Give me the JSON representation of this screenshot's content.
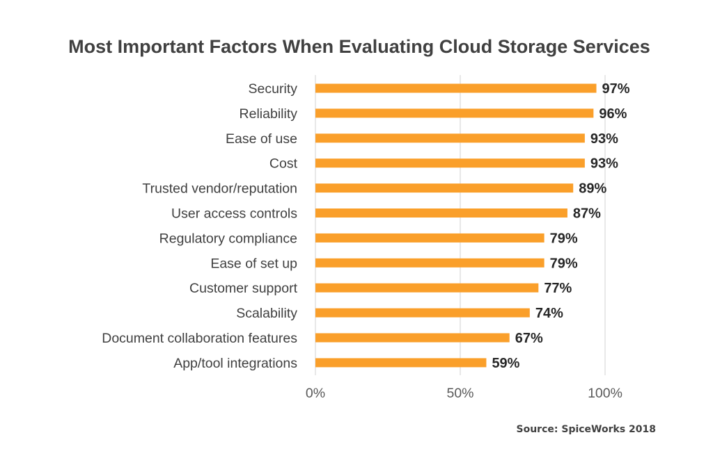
{
  "chart_data": {
    "type": "bar",
    "orientation": "horizontal",
    "title": "Most Important Factors When Evaluating Cloud Storage Services",
    "categories": [
      "Security",
      "Reliability",
      "Ease of use",
      "Cost",
      "Trusted vendor/reputation",
      "User access controls",
      "Regulatory compliance",
      "Ease of set up",
      "Customer support",
      "Scalability",
      "Document collaboration features",
      "App/tool integrations"
    ],
    "values": [
      97,
      96,
      93,
      93,
      89,
      87,
      79,
      79,
      77,
      74,
      67,
      59
    ],
    "value_labels": [
      "97%",
      "96%",
      "93%",
      "93%",
      "89%",
      "87%",
      "79%",
      "79%",
      "77%",
      "74%",
      "67%",
      "59%"
    ],
    "xlim": [
      0,
      100
    ],
    "x_ticks": [
      0,
      50,
      100
    ],
    "x_tick_labels": [
      "0%",
      "50%",
      "100%"
    ],
    "grid": "vertical",
    "legend": "none",
    "bar_color": "#FA9F2A",
    "source": "Source: SpiceWorks 2018"
  }
}
